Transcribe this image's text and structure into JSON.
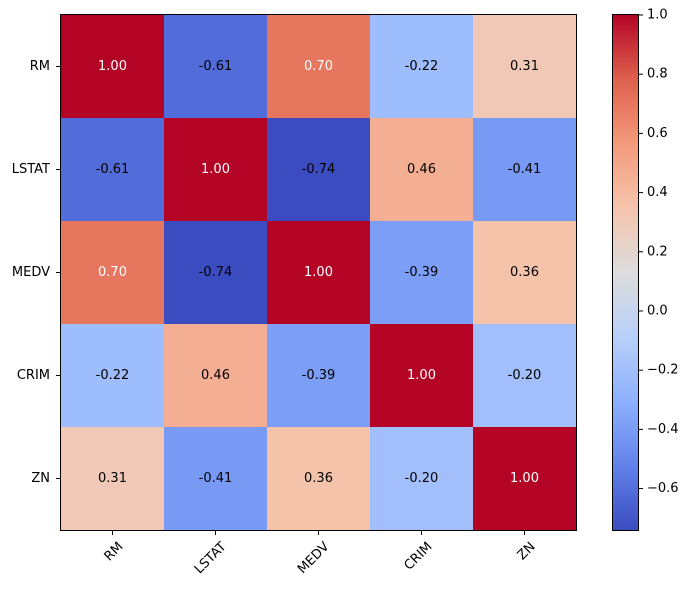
{
  "chart_data": {
    "type": "heatmap",
    "title": "",
    "xlabel": "",
    "ylabel": "",
    "categories": [
      "RM",
      "LSTAT",
      "MEDV",
      "CRIM",
      "ZN"
    ],
    "row_labels": [
      "RM",
      "LSTAT",
      "MEDV",
      "CRIM",
      "ZN"
    ],
    "matrix": [
      [
        1.0,
        -0.61,
        0.7,
        -0.22,
        0.31
      ],
      [
        -0.61,
        1.0,
        -0.74,
        0.46,
        -0.41
      ],
      [
        0.7,
        -0.74,
        1.0,
        -0.39,
        0.36
      ],
      [
        -0.22,
        0.46,
        -0.39,
        1.0,
        -0.2
      ],
      [
        0.31,
        -0.41,
        0.36,
        -0.2,
        1.0
      ]
    ],
    "cell_labels": [
      [
        "1.00",
        "-0.61",
        "0.70",
        "-0.22",
        "0.31"
      ],
      [
        "-0.61",
        "1.00",
        "-0.74",
        "0.46",
        "-0.41"
      ],
      [
        "0.70",
        "-0.74",
        "1.00",
        "-0.39",
        "0.36"
      ],
      [
        "-0.22",
        "0.46",
        "-0.39",
        "1.00",
        "-0.20"
      ],
      [
        "0.31",
        "-0.41",
        "0.36",
        "-0.20",
        "1.00"
      ]
    ],
    "colormap": "coolwarm",
    "vmin": -0.74,
    "vmax": 1.0,
    "colorbar_ticks": [
      1.0,
      0.8,
      0.6,
      0.4,
      0.2,
      0.0,
      -0.2,
      -0.4,
      -0.6
    ],
    "colorbar_tick_labels": [
      "1.0",
      "0.8",
      "0.6",
      "0.4",
      "0.2",
      "0.0",
      "−0.2",
      "−0.4",
      "−0.6"
    ],
    "legend": "colorbar-right"
  }
}
